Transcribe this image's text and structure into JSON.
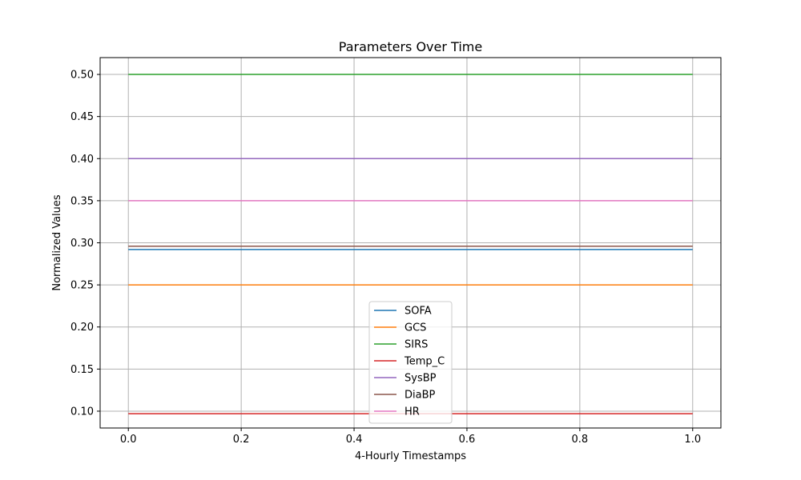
{
  "chart_data": {
    "type": "line",
    "title": "Parameters Over Time",
    "xlabel": "4-Hourly Timestamps",
    "ylabel": "Normalized Values",
    "xlim": [
      -0.05,
      1.05
    ],
    "ylim": [
      0.08,
      0.52
    ],
    "xticks": [
      0.0,
      0.2,
      0.4,
      0.6,
      0.8,
      1.0
    ],
    "xtick_labels": [
      "0.0",
      "0.2",
      "0.4",
      "0.6",
      "0.8",
      "1.0"
    ],
    "yticks": [
      0.1,
      0.15,
      0.2,
      0.25,
      0.3,
      0.35,
      0.4,
      0.45,
      0.5
    ],
    "ytick_labels": [
      "0.10",
      "0.15",
      "0.20",
      "0.25",
      "0.30",
      "0.35",
      "0.40",
      "0.45",
      "0.50"
    ],
    "grid": true,
    "legend_position": "bottom-center",
    "x": [
      0.0,
      1.0
    ],
    "series": [
      {
        "name": "SOFA",
        "color": "#1f77b4",
        "values": [
          0.292,
          0.292
        ]
      },
      {
        "name": "GCS",
        "color": "#ff7f0e",
        "values": [
          0.25,
          0.25
        ]
      },
      {
        "name": "SIRS",
        "color": "#2ca02c",
        "values": [
          0.5,
          0.5
        ]
      },
      {
        "name": "Temp_C",
        "color": "#d62728",
        "values": [
          0.097,
          0.097
        ]
      },
      {
        "name": "SysBP",
        "color": "#9467bd",
        "values": [
          0.4,
          0.4
        ]
      },
      {
        "name": "DiaBP",
        "color": "#8c564b",
        "values": [
          0.296,
          0.296
        ]
      },
      {
        "name": "HR",
        "color": "#e377c2",
        "values": [
          0.35,
          0.35
        ]
      }
    ]
  }
}
